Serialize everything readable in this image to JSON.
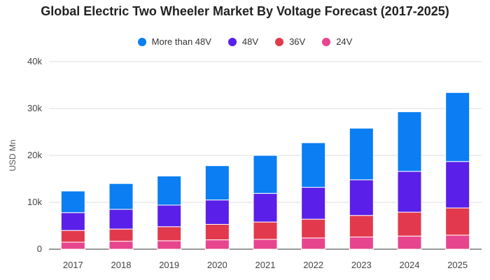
{
  "chart_data": {
    "type": "bar",
    "stacked": true,
    "title": "Global Electric Two Wheeler Market By Voltage Forecast (2017-2025)",
    "xlabel": "",
    "ylabel": "USD Mn",
    "categories": [
      "2017",
      "2018",
      "2019",
      "2020",
      "2021",
      "2022",
      "2023",
      "2024",
      "2025"
    ],
    "ylim": [
      0,
      40000
    ],
    "yticks": [
      0,
      10000,
      20000,
      30000,
      40000
    ],
    "ytick_labels": [
      "0",
      "10k",
      "20k",
      "30k",
      "40k"
    ],
    "grid": true,
    "legend_position": "top",
    "series": [
      {
        "name": "24V",
        "color": "#e8458f",
        "values": [
          1500,
          1700,
          1800,
          2000,
          2100,
          2400,
          2600,
          2800,
          3000
        ]
      },
      {
        "name": "36V",
        "color": "#e23a4c",
        "values": [
          2500,
          2600,
          3000,
          3300,
          3700,
          4000,
          4600,
          5100,
          5800
        ]
      },
      {
        "name": "48V",
        "color": "#5a1fe8",
        "values": [
          3800,
          4200,
          4600,
          5200,
          6100,
          6800,
          7600,
          8700,
          9900
        ]
      },
      {
        "name": "More than 48V",
        "color": "#0a7ef2",
        "values": [
          4600,
          5500,
          6200,
          7300,
          8100,
          9500,
          11000,
          12700,
          14700
        ]
      }
    ],
    "legend_order": [
      "More than 48V",
      "48V",
      "36V",
      "24V"
    ]
  }
}
